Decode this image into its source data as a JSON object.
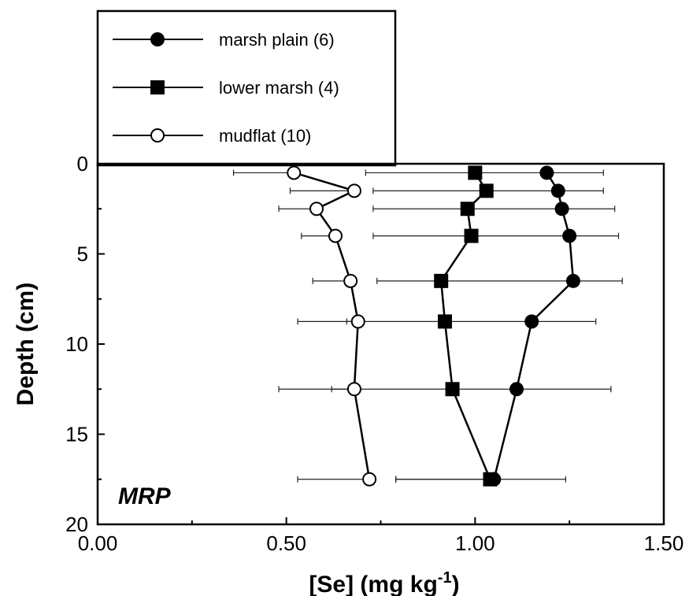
{
  "chart_data": {
    "type": "line",
    "orientation": "profile",
    "xlabel": "[Se] (mg kg",
    "xlabel_superscript": "-1",
    "xlabel_close": ")",
    "ylabel": "Depth (cm)",
    "xlim": [
      0,
      1.5
    ],
    "ylim": [
      0,
      20
    ],
    "y_inverted": true,
    "x_ticks": [
      "0.00",
      "0.50",
      "1.00",
      "1.50"
    ],
    "x_tick_values": [
      0,
      0.5,
      1.0,
      1.5
    ],
    "y_ticks": [
      "0",
      "5",
      "10",
      "15",
      "20"
    ],
    "y_tick_values": [
      0,
      5,
      10,
      15,
      20
    ],
    "legend_placement": "top-left-outside",
    "annotation": "MRP",
    "series": [
      {
        "name": "marsh plain (6)",
        "marker": "filled-circle",
        "depth": [
          0.5,
          1.5,
          2.5,
          4,
          6.5,
          8.75,
          12.5,
          17.5
        ],
        "se": [
          1.19,
          1.22,
          1.23,
          1.25,
          1.26,
          1.15,
          1.11,
          1.05
        ],
        "err_left": [
          0.48,
          0.49,
          0.5,
          0.52,
          0.52,
          0.49,
          0.49,
          0.26
        ],
        "err_right": [
          0.15,
          0.12,
          0.14,
          0.13,
          0.13,
          0.17,
          0.25,
          0.19
        ]
      },
      {
        "name": "lower marsh (4)",
        "marker": "filled-square",
        "depth": [
          0.5,
          1.5,
          2.5,
          4,
          6.5,
          8.75,
          12.5,
          17.5
        ],
        "se": [
          1.0,
          1.03,
          0.98,
          0.99,
          0.91,
          0.92,
          0.94,
          1.04
        ],
        "err_left": [
          0.0,
          0.0,
          0.0,
          0.0,
          0.0,
          0.0,
          0.0,
          0.25
        ],
        "err_right": [
          0.0,
          0.0,
          0.0,
          0.0,
          0.0,
          0.0,
          0.0,
          0.0
        ]
      },
      {
        "name": "mudflat (10)",
        "marker": "open-circle",
        "depth": [
          0.5,
          1.5,
          2.5,
          4,
          6.5,
          8.75,
          12.5,
          17.5
        ],
        "se": [
          0.52,
          0.68,
          0.58,
          0.63,
          0.67,
          0.69,
          0.68,
          0.72
        ],
        "err_left": [
          0.16,
          0.17,
          0.1,
          0.09,
          0.1,
          0.16,
          0.2,
          0.19
        ],
        "err_right": [
          0.0,
          0.0,
          0.0,
          0.0,
          0.0,
          0.0,
          0.0,
          0.0
        ]
      }
    ]
  }
}
